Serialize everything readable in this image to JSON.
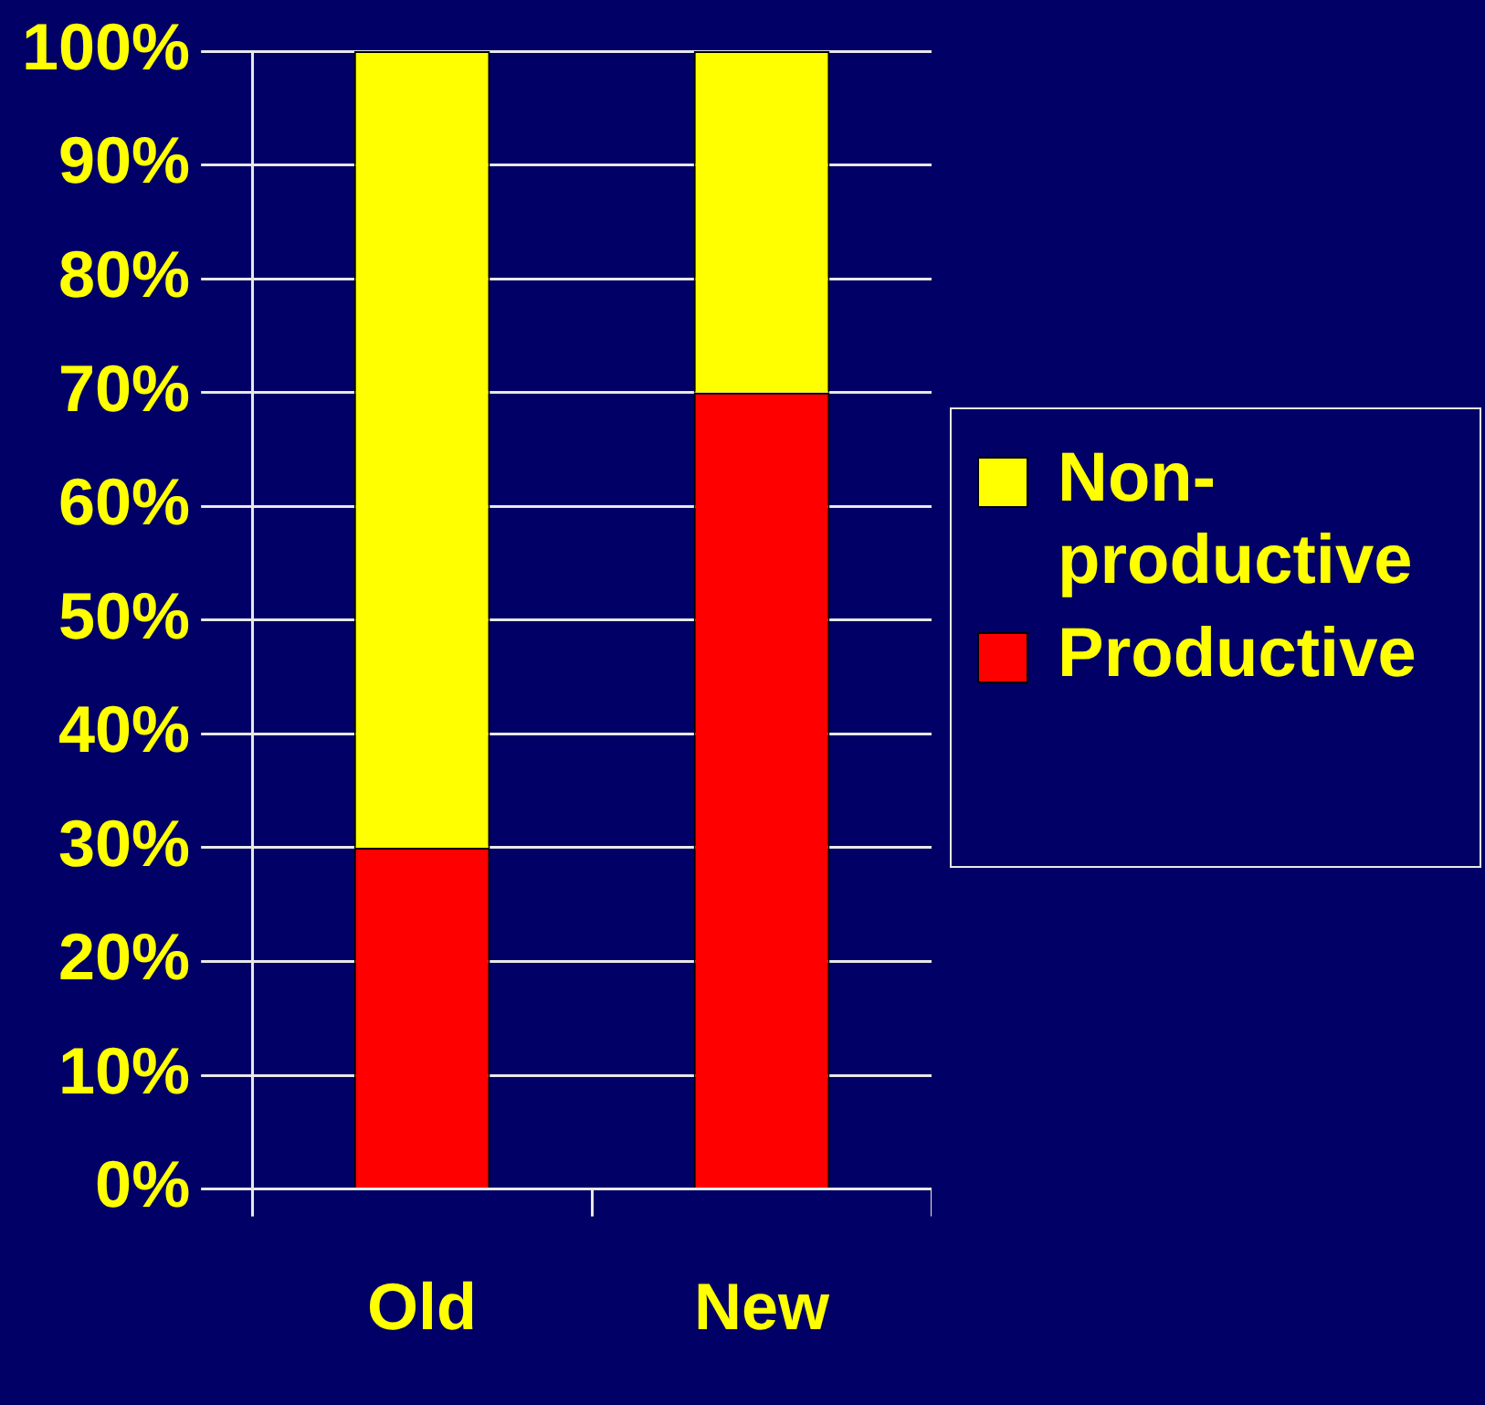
{
  "chart_data": {
    "type": "bar",
    "stacked": true,
    "categories": [
      "Old",
      "New"
    ],
    "series": [
      {
        "name": "Productive",
        "color": "#ff0000",
        "values": [
          30,
          70
        ]
      },
      {
        "name": "Non-productive",
        "color": "#ffff00",
        "values": [
          70,
          30
        ]
      }
    ],
    "ylim": [
      0,
      100
    ],
    "yticks": [
      {
        "value": 0,
        "label": "0%"
      },
      {
        "value": 10,
        "label": "10%"
      },
      {
        "value": 20,
        "label": "20%"
      },
      {
        "value": 30,
        "label": "30%"
      },
      {
        "value": 40,
        "label": "40%"
      },
      {
        "value": 50,
        "label": "50%"
      },
      {
        "value": 60,
        "label": "60%"
      },
      {
        "value": 70,
        "label": "70%"
      },
      {
        "value": 80,
        "label": "80%"
      },
      {
        "value": 90,
        "label": "90%"
      },
      {
        "value": 100,
        "label": "100%"
      }
    ],
    "grid": "y",
    "legend": "right"
  }
}
